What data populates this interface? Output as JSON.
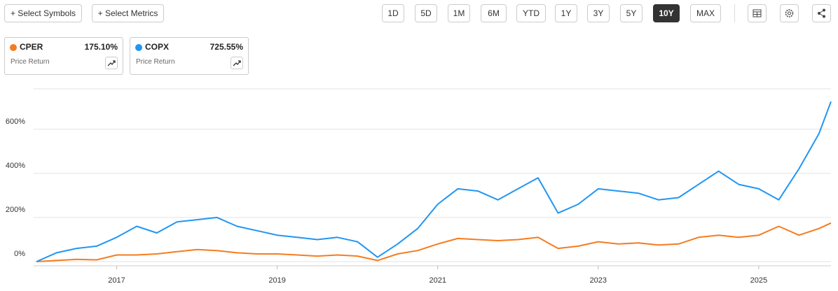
{
  "toolbar": {
    "add_buttons": [
      "+ Select Symbols",
      "+ Select Metrics"
    ],
    "ranges": [
      {
        "label": "1D"
      },
      {
        "label": "5D"
      },
      {
        "label": "1M"
      },
      {
        "label": "6M"
      },
      {
        "label": "YTD"
      },
      {
        "label": "1Y"
      },
      {
        "label": "3Y"
      },
      {
        "label": "5Y"
      },
      {
        "label": "10Y",
        "active": true
      },
      {
        "label": "MAX"
      }
    ]
  },
  "chart_data": {
    "type": "line",
    "x": [
      2016.0,
      2016.25,
      2016.5,
      2016.75,
      2017.0,
      2017.25,
      2017.5,
      2017.75,
      2018.0,
      2018.25,
      2018.5,
      2018.75,
      2019.0,
      2019.25,
      2019.5,
      2019.75,
      2020.0,
      2020.25,
      2020.5,
      2020.75,
      2021.0,
      2021.25,
      2021.5,
      2021.75,
      2022.0,
      2022.25,
      2022.5,
      2022.75,
      2023.0,
      2023.25,
      2023.5,
      2023.75,
      2024.0,
      2024.25,
      2024.5,
      2024.75,
      2025.0,
      2025.25,
      2025.5,
      2025.75,
      2025.9
    ],
    "series": [
      {
        "name": "CPER",
        "color": "#f57c1f",
        "return_label": "175.10%",
        "metric": "Price Return",
        "values": [
          0,
          5,
          10,
          8,
          30,
          30,
          35,
          45,
          55,
          50,
          40,
          35,
          35,
          30,
          25,
          30,
          25,
          5,
          35,
          50,
          80,
          105,
          100,
          95,
          100,
          110,
          60,
          70,
          90,
          80,
          85,
          75,
          80,
          110,
          120,
          110,
          120,
          160,
          120,
          150,
          175.1
        ]
      },
      {
        "name": "COPX",
        "color": "#2196f3",
        "return_label": "725.55%",
        "metric": "Price Return",
        "values": [
          0,
          40,
          60,
          70,
          110,
          160,
          130,
          180,
          190,
          200,
          160,
          140,
          120,
          110,
          100,
          110,
          90,
          20,
          80,
          150,
          260,
          330,
          320,
          280,
          330,
          380,
          220,
          260,
          330,
          320,
          310,
          280,
          290,
          350,
          410,
          350,
          330,
          280,
          420,
          580,
          725.55
        ]
      }
    ],
    "xlim": [
      2016.0,
      2025.9
    ],
    "xticks": [
      2017,
      2019,
      2021,
      2023,
      2025
    ],
    "ylim": [
      0,
      780
    ],
    "yticks": [
      {
        "value": 0,
        "label": "0%"
      },
      {
        "value": 200,
        "label": "200%"
      },
      {
        "value": 400,
        "label": "400%"
      },
      {
        "value": 600,
        "label": "600%"
      }
    ],
    "grid": true
  }
}
